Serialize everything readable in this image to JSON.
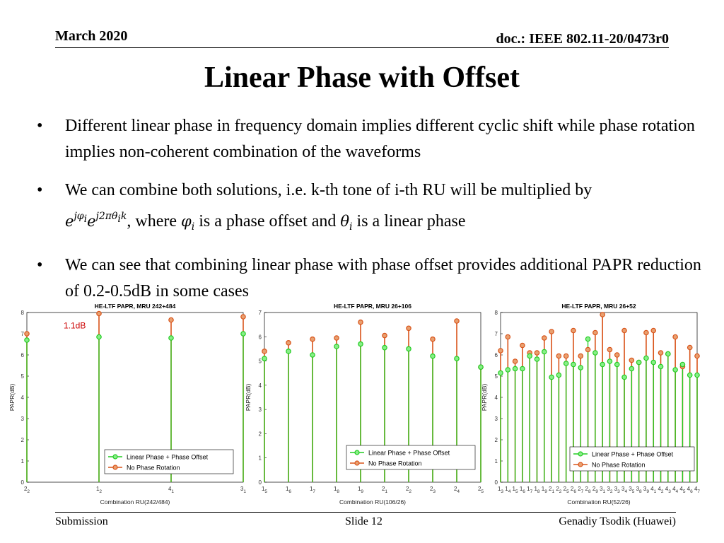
{
  "header": {
    "date": "March 2020",
    "doc": "doc.: IEEE 802.11-20/0473r0"
  },
  "title": "Linear Phase with Offset",
  "bullets": {
    "b1": "Different linear phase in frequency domain implies different cyclic shift while phase rotation implies non-coherent combination of the waveforms",
    "b2_pre": "We can combine both solutions, i.e. k-th tone of i-th RU will be multiplied by",
    "b2_where": ", where",
    "b2_mid": "is a phase offset and",
    "b2_end": "is a linear phase",
    "b3": "We can see that combining linear phase with phase offset provides additional PAPR reduction of 0.2-0.5dB in some cases",
    "marker": "•"
  },
  "footer": {
    "left": "Submission",
    "center": "Slide 12",
    "right": "Genadiy Tsodik (Huawei)"
  },
  "colors": {
    "green": "#22cc22",
    "orange": "#d95319",
    "red_label": "#cc0000"
  },
  "chart_data": [
    {
      "type": "stem",
      "title": "HE-LTF PAPR, MRU 242+484",
      "xlabel": "Combination RU(242/484)",
      "ylabel": "PAPR(dB)",
      "ylim": [
        0,
        8
      ],
      "yticks": [
        0,
        1,
        2,
        3,
        4,
        5,
        6,
        7,
        8
      ],
      "categories": [
        [
          "2",
          "2"
        ],
        [
          "1",
          "2"
        ],
        [
          "4",
          "1"
        ],
        [
          "3",
          "1"
        ]
      ],
      "annotation": "1.1dB",
      "legend_position": "bottom-right",
      "series": [
        {
          "name": "Linear Phase + Phase Offset",
          "values": [
            6.7,
            6.85,
            6.8,
            7.0
          ]
        },
        {
          "name": "No Phase Rotation",
          "values": [
            7.0,
            7.95,
            7.65,
            7.8
          ]
        }
      ]
    },
    {
      "type": "stem",
      "title": "HE-LTF PAPR, MRU 26+106",
      "xlabel": "Combination RU(106/26)",
      "ylabel": "PAPR(dB)",
      "ylim": [
        0,
        7
      ],
      "yticks": [
        0,
        1,
        2,
        3,
        4,
        5,
        6,
        7
      ],
      "categories": [
        [
          "1",
          "5"
        ],
        [
          "1",
          "6"
        ],
        [
          "1",
          "7"
        ],
        [
          "1",
          "8"
        ],
        [
          "1",
          "9"
        ],
        [
          "2",
          "1"
        ],
        [
          "2",
          "2"
        ],
        [
          "2",
          "3"
        ],
        [
          "2",
          "4"
        ],
        [
          "2",
          "5"
        ]
      ],
      "legend_position": "bottom-right",
      "series": [
        {
          "name": "Linear Phase + Phase Offset",
          "values": [
            5.1,
            5.4,
            5.25,
            5.6,
            5.7,
            5.55,
            5.5,
            5.2,
            5.1,
            4.75
          ]
        },
        {
          "name": "No Phase Rotation",
          "values": [
            5.4,
            5.75,
            5.9,
            5.95,
            6.6,
            6.05,
            6.35,
            5.9,
            6.65,
            4.75
          ]
        }
      ]
    },
    {
      "type": "stem",
      "title": "HE-LTF PAPR, MRU 26+52",
      "xlabel": "Combination RU(52/26)",
      "ylabel": "PAPR(dB)",
      "ylim": [
        0,
        8
      ],
      "yticks": [
        0,
        1,
        2,
        3,
        4,
        5,
        6,
        7,
        8
      ],
      "categories": [
        [
          "1",
          "3"
        ],
        [
          "1",
          "4"
        ],
        [
          "1",
          "5"
        ],
        [
          "1",
          "6"
        ],
        [
          "1",
          "7"
        ],
        [
          "1",
          "8"
        ],
        [
          "1",
          "9"
        ],
        [
          "2",
          "1"
        ],
        [
          "2",
          "2"
        ],
        [
          "2",
          "5"
        ],
        [
          "2",
          "6"
        ],
        [
          "2",
          "7"
        ],
        [
          "2",
          "8"
        ],
        [
          "2",
          "9"
        ],
        [
          "3",
          "1"
        ],
        [
          "3",
          "2"
        ],
        [
          "3",
          "3"
        ],
        [
          "3",
          "4"
        ],
        [
          "3",
          "5"
        ],
        [
          "3",
          "8"
        ],
        [
          "3",
          "9"
        ],
        [
          "4",
          "1"
        ],
        [
          "4",
          "2"
        ],
        [
          "4",
          "3"
        ],
        [
          "4",
          "4"
        ],
        [
          "4",
          "5"
        ],
        [
          "4",
          "6"
        ],
        [
          "4",
          "7"
        ]
      ],
      "legend_position": "bottom-right",
      "series": [
        {
          "name": "Linear Phase + Phase Offset",
          "values": [
            5.15,
            5.3,
            5.35,
            5.35,
            5.95,
            5.8,
            6.15,
            4.95,
            5.05,
            5.6,
            5.55,
            5.4,
            6.75,
            6.1,
            5.55,
            5.7,
            5.55,
            4.95,
            5.35,
            5.65,
            5.85,
            5.65,
            5.45,
            6.05,
            5.3,
            5.55,
            5.05,
            5.05
          ],
          "_note": ""
        },
        {
          "name": "No Phase Rotation",
          "values": [
            6.2,
            6.85,
            5.7,
            6.45,
            6.1,
            6.1,
            6.8,
            7.1,
            5.95,
            5.95,
            7.15,
            5.95,
            6.25,
            7.05,
            7.9,
            6.25,
            6.0,
            7.15,
            5.75,
            5.65,
            7.05,
            7.15,
            6.1,
            6.05,
            6.85,
            5.45,
            6.35,
            5.95
          ]
        }
      ]
    }
  ]
}
